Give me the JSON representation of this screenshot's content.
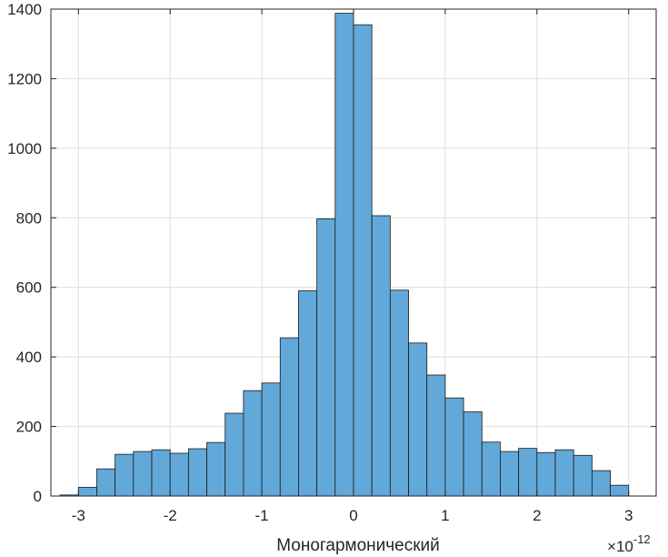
{
  "chart_data": {
    "type": "bar",
    "xlabel": "Моногармонический",
    "ylabel": "",
    "title": "",
    "x_exponent_base": "10",
    "x_exponent": "-12",
    "x_exponent_prefix": "×",
    "xlim": [
      -3.3,
      3.3
    ],
    "ylim": [
      0,
      1400
    ],
    "xticks": [
      -3,
      -2,
      -1,
      0,
      1,
      2,
      3
    ],
    "xtick_labels": [
      "-3",
      "-2",
      "-1",
      "0",
      "1",
      "2",
      "3"
    ],
    "yticks": [
      0,
      200,
      400,
      600,
      800,
      1000,
      1200,
      1400
    ],
    "ytick_labels": [
      "0",
      "200",
      "400",
      "600",
      "800",
      "1000",
      "1200",
      "1400"
    ],
    "grid": true,
    "bar_color": "#62a8d8",
    "edge_color": "#1a1a1a",
    "bin_width": 0.2,
    "bin_edges": [
      -3.2,
      -3.0,
      -2.8,
      -2.6,
      -2.4,
      -2.2,
      -2.0,
      -1.8,
      -1.6,
      -1.4,
      -1.2,
      -1.0,
      -0.8,
      -0.6,
      -0.4,
      -0.2,
      0.0,
      0.2,
      0.4,
      0.6,
      0.8,
      1.0,
      1.2,
      1.4,
      1.6,
      1.8,
      2.0,
      2.2,
      2.4,
      2.6,
      2.8,
      3.0
    ],
    "values": [
      3,
      25,
      78,
      120,
      128,
      133,
      123,
      136,
      154,
      238,
      303,
      325,
      455,
      590,
      797,
      1388,
      1355,
      806,
      592,
      440,
      348,
      282,
      242,
      155,
      128,
      137,
      125,
      133,
      117,
      73,
      31
    ]
  }
}
